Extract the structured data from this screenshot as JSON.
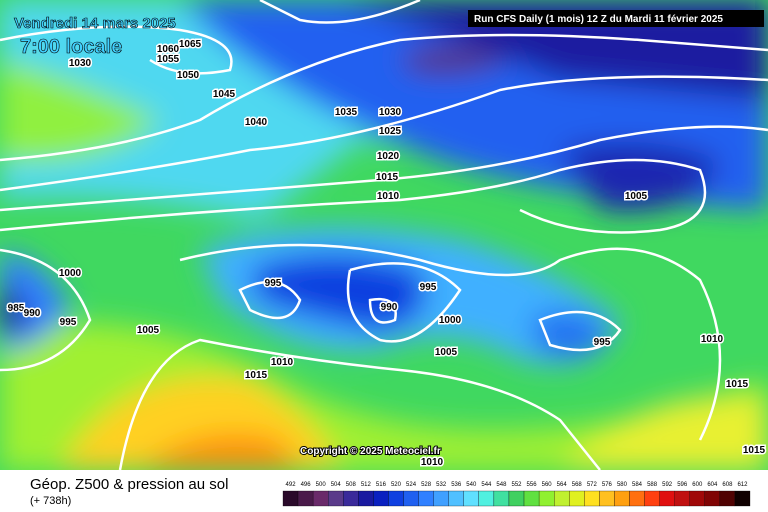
{
  "header": {
    "date": "Vendredi 14 mars 2025",
    "time": "7:00 locale",
    "run": "Run CFS Daily (1 mois) 12 Z du Mardi 11 février 2025"
  },
  "copyright": "Copyright © 2025 Meteociel.fr",
  "footer": {
    "title": "Géop. Z500 & pression au sol",
    "lead": "(+ 738h)"
  },
  "scale": {
    "labels": [
      "492",
      "496",
      "500",
      "504",
      "508",
      "512",
      "516",
      "520",
      "524",
      "528",
      "532",
      "536",
      "540",
      "544",
      "548",
      "552",
      "556",
      "560",
      "564",
      "568",
      "572",
      "576",
      "580",
      "584",
      "588",
      "592",
      "596",
      "600",
      "604",
      "608",
      "612"
    ],
    "colors": [
      "#2a0a2a",
      "#4a1a4a",
      "#6a2a6a",
      "#5a3a8a",
      "#3a2a9a",
      "#1a1aa0",
      "#0a20c0",
      "#1040e0",
      "#2060f0",
      "#3080ff",
      "#40a0ff",
      "#50c0ff",
      "#60e0ff",
      "#50f0e0",
      "#40e0a0",
      "#40d060",
      "#60e040",
      "#90f030",
      "#c0f030",
      "#e0f020",
      "#ffe020",
      "#ffc020",
      "#ffa010",
      "#ff7010",
      "#ff4010",
      "#e01010",
      "#c01010",
      "#a00808",
      "#800404",
      "#500202",
      "#100000"
    ]
  },
  "isobars": [
    "1065",
    "1060",
    "1055",
    "1050",
    "1030",
    "1045",
    "1040",
    "1035",
    "1030",
    "1025",
    "1020",
    "1015",
    "1010",
    "1005",
    "1000",
    "995",
    "995",
    "990",
    "985",
    "990",
    "995",
    "1005",
    "1000",
    "1005",
    "995",
    "1010",
    "1010",
    "1015",
    "1015",
    "1015",
    "1010"
  ]
}
